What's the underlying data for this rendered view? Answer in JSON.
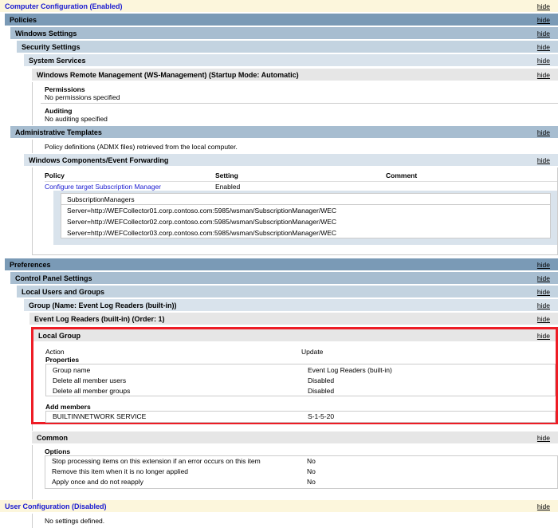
{
  "hide_label": "hide",
  "computer_config": "Computer Configuration (Enabled)",
  "policies": "Policies",
  "windows_settings": "Windows Settings",
  "security_settings": "Security Settings",
  "system_services": "System Services",
  "winrm": "Windows Remote Management (WS-Management) (Startup Mode: Automatic)",
  "permissions": {
    "title": "Permissions",
    "value": "No permissions specified"
  },
  "auditing": {
    "title": "Auditing",
    "value": "No auditing specified"
  },
  "admin_templates": "Administrative Templates",
  "admx_note": "Policy definitions (ADMX files) retrieved from the local computer.",
  "event_forwarding": "Windows Components/Event Forwarding",
  "policy_table": {
    "headers": [
      "Policy",
      "Setting",
      "Comment"
    ],
    "policy": "Configure target Subscription Manager",
    "setting": "Enabled"
  },
  "subscription": {
    "header": "SubscriptionManagers",
    "servers": [
      "Server=http://WEFCollector01.corp.contoso.com:5985/wsman/SubscriptionManager/WEC",
      "Server=http://WEFCollector02.corp.contoso.com:5985/wsman/SubscriptionManager/WEC",
      "Server=http://WEFCollector03.corp.contoso.com:5985/wsman/SubscriptionManager/WEC"
    ]
  },
  "preferences": "Preferences",
  "control_panel": "Control Panel Settings",
  "local_users": "Local Users and Groups",
  "group": "Group (Name: Event Log Readers (built-in))",
  "elr": "Event Log Readers (built-in) (Order: 1)",
  "local_group": {
    "title": "Local Group",
    "action_label": "Action",
    "action_value": "Update",
    "properties": "Properties",
    "props": [
      [
        "Group name",
        "Event Log Readers (built-in)"
      ],
      [
        "Delete all member users",
        "Disabled"
      ],
      [
        "Delete all member groups",
        "Disabled"
      ]
    ],
    "add_members": "Add members",
    "member": [
      "BUILTIN\\NETWORK SERVICE",
      "S-1-5-20"
    ]
  },
  "common": {
    "title": "Common",
    "options": "Options",
    "items": [
      [
        "Stop processing items on this extension if an error occurs on this item",
        "No"
      ],
      [
        "Remove this item when it is no longer applied",
        "No"
      ],
      [
        "Apply once and do not reapply",
        "No"
      ]
    ]
  },
  "user_config": "User Configuration (Disabled)",
  "no_settings": "No settings defined.",
  "highlight_color": "#ee1c25"
}
